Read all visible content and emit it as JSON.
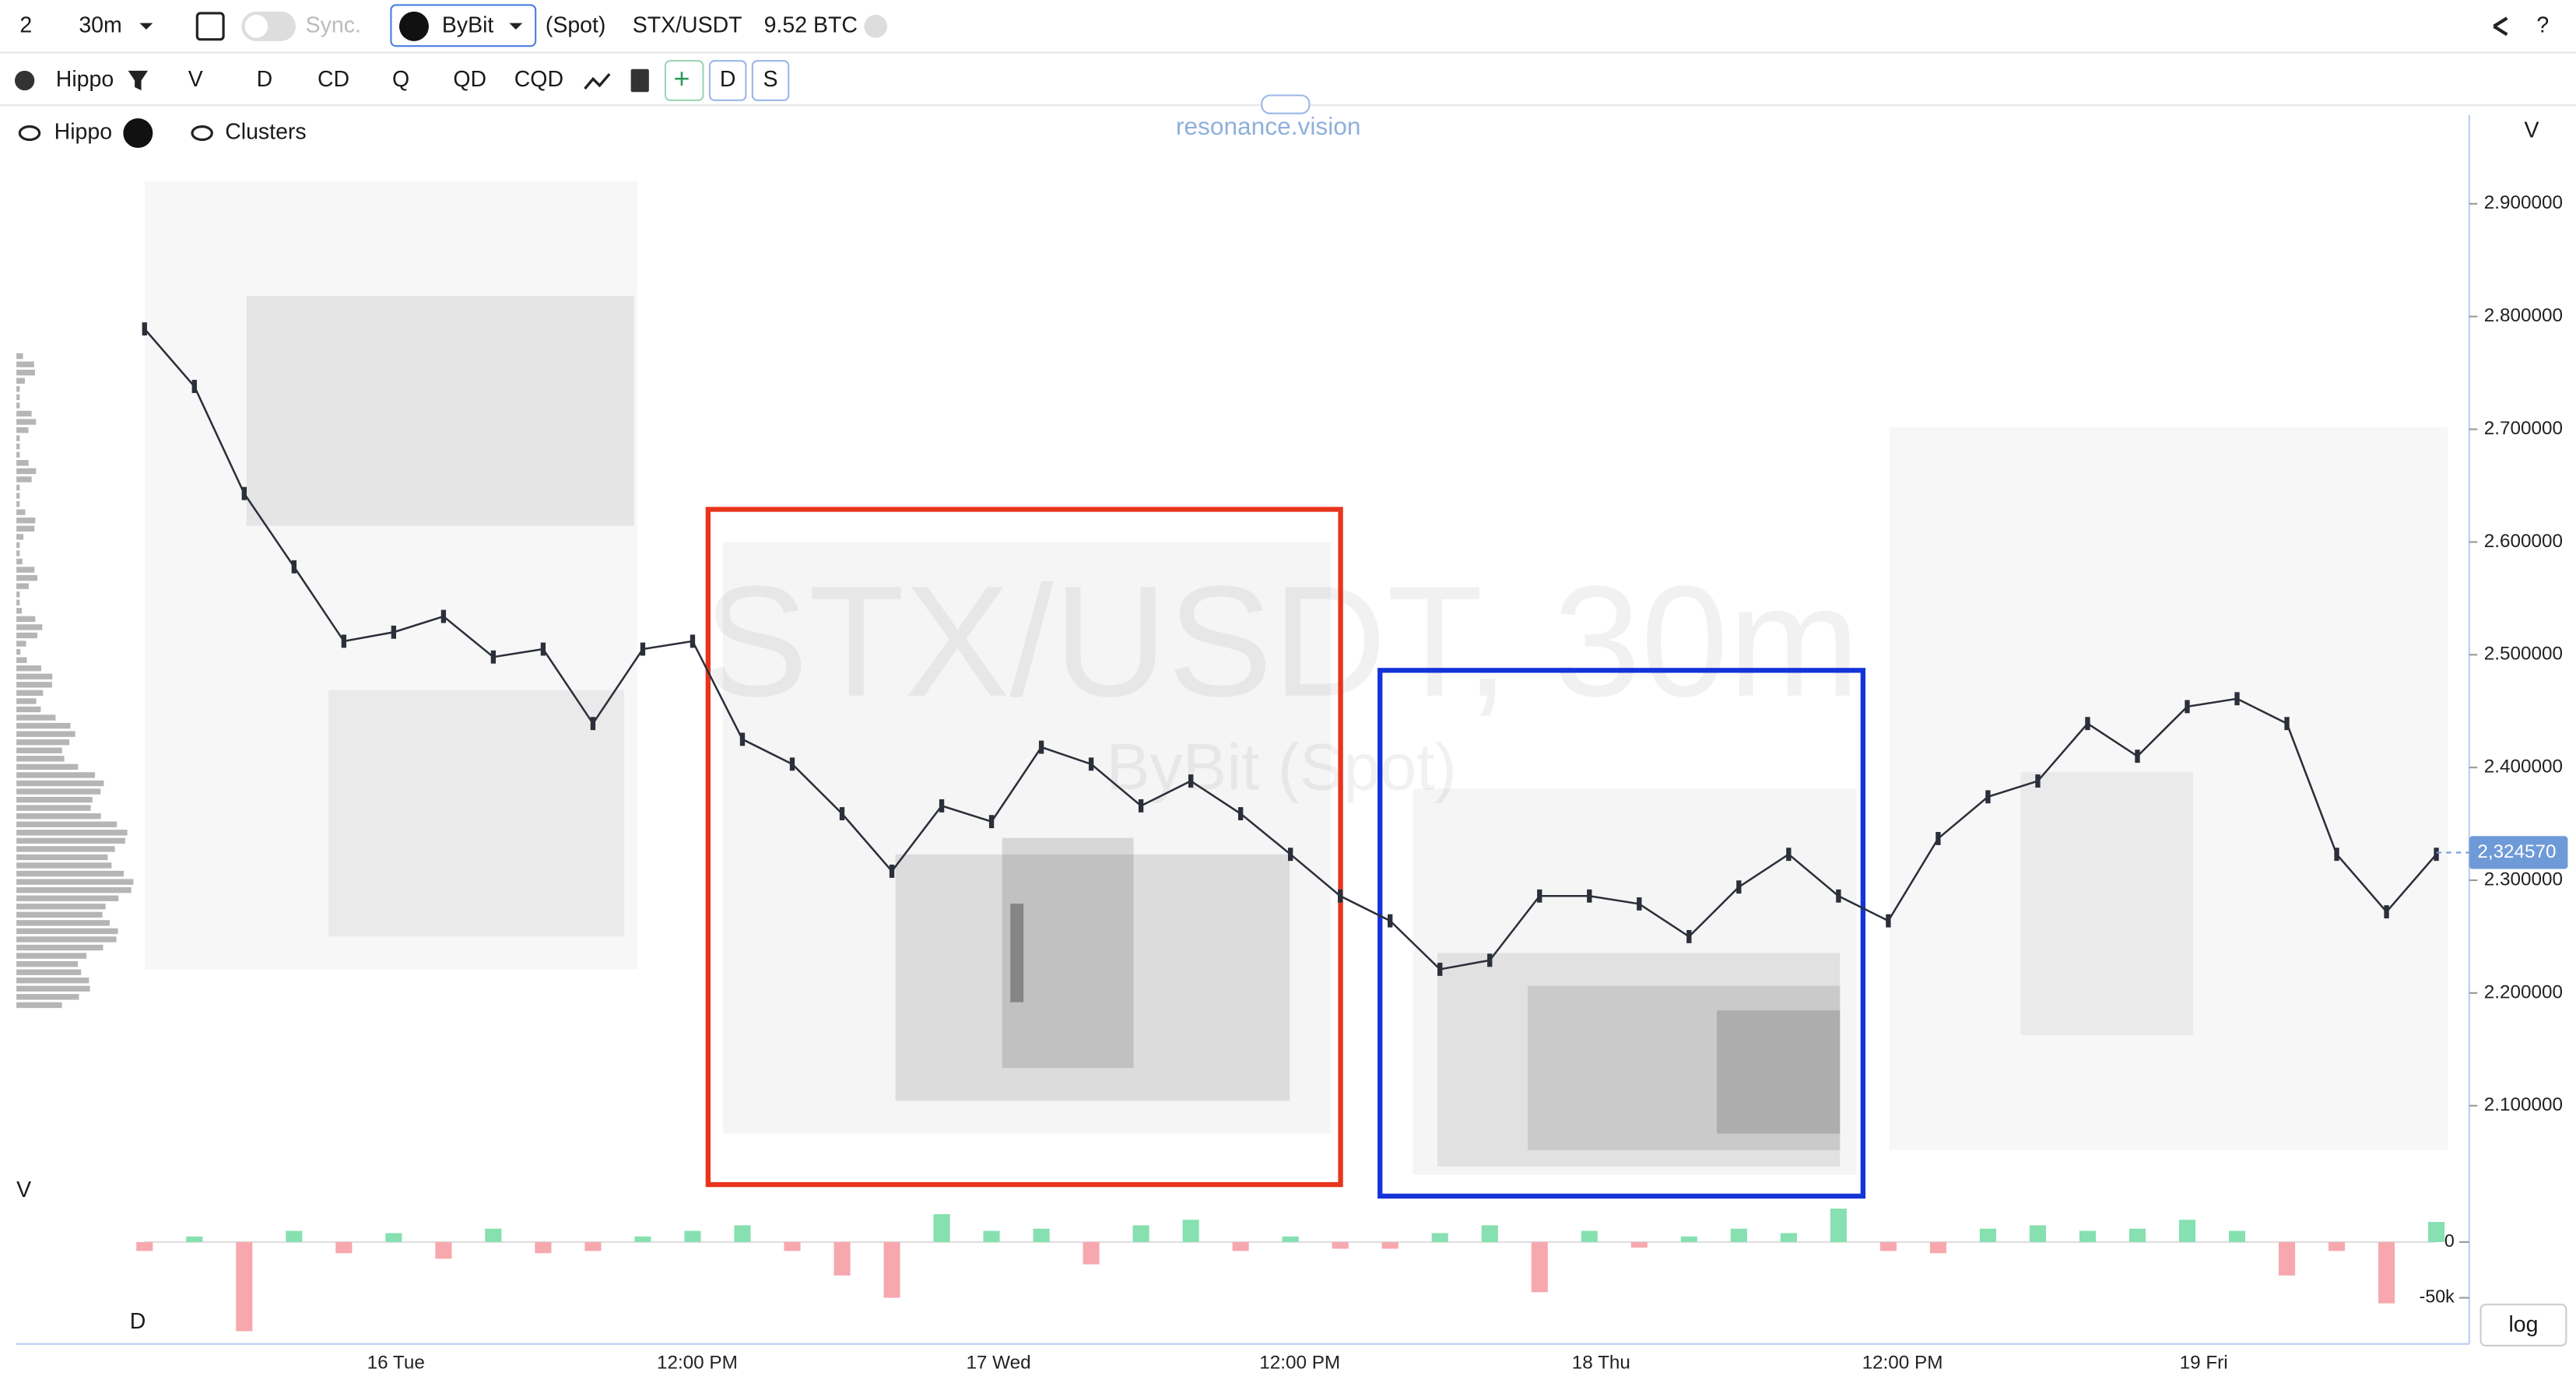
{
  "toolbar": {
    "layout_count": "2",
    "interval": "30m",
    "sync": "Sync.",
    "exchange": "ByBit",
    "market": "(Spot)",
    "symbol": "STX/USDT",
    "volume": "9.52 BTC"
  },
  "toolbar2": {
    "indicator": "Hippo",
    "buttons": [
      "V",
      "D",
      "CD",
      "Q",
      "QD",
      "CQD"
    ],
    "toggles": [
      "D",
      "S"
    ]
  },
  "legend": {
    "hippo": "Hippo",
    "clusters": "Clusters"
  },
  "watermark": {
    "brand": "resonance.vision",
    "symbol": "STX/USDT, 30m",
    "exchange": "ByBit (Spot)"
  },
  "chart_data": {
    "type": "line",
    "color": "#2b2f3a",
    "axis_label": "V",
    "values": [
      2.789,
      2.738,
      2.643,
      2.578,
      2.512,
      2.52,
      2.534,
      2.498,
      2.505,
      2.439,
      2.505,
      2.512,
      2.425,
      2.403,
      2.359,
      2.308,
      2.366,
      2.352,
      2.418,
      2.403,
      2.366,
      2.388,
      2.359,
      2.323,
      2.286,
      2.264,
      2.221,
      2.229,
      2.286,
      2.286,
      2.279,
      2.25,
      2.294,
      2.323,
      2.286,
      2.264,
      2.337,
      2.374,
      2.388,
      2.439,
      2.41,
      2.454,
      2.461,
      2.439,
      2.323,
      2.272,
      2.323
    ],
    "ylim": [
      2.0315,
      2.9787
    ],
    "yticks": [
      {
        "value": 2.9,
        "label": "2.900000"
      },
      {
        "value": 2.8,
        "label": "2.800000"
      },
      {
        "value": 2.7,
        "label": "2.700000"
      },
      {
        "value": 2.6,
        "label": "2.600000"
      },
      {
        "value": 2.5,
        "label": "2.500000"
      },
      {
        "value": 2.4,
        "label": "2.400000"
      },
      {
        "value": 2.3,
        "label": "2.300000"
      },
      {
        "value": 2.2,
        "label": "2.200000"
      },
      {
        "value": 2.1,
        "label": "2.100000"
      }
    ],
    "current_price": {
      "value": 2.32457,
      "label": "2,324570"
    },
    "x_labels": [
      "16 Tue",
      "12:00 PM",
      "17 Wed",
      "12:00 PM",
      "18 Thu",
      "12:00 PM",
      "19 Fri"
    ],
    "volume_label": "V",
    "scale_button": "log",
    "delta": {
      "label": "D",
      "positive_color": "#86e0b0",
      "negative_color": "#f7a8ae",
      "ylim": [
        -87000,
        53000
      ],
      "yticks": [
        {
          "value": 0,
          "label": "0"
        },
        {
          "value": -50000,
          "label": "-50k"
        }
      ],
      "values": [
        -8000,
        5000,
        -80000,
        10000,
        -10000,
        8000,
        -15000,
        12000,
        -10000,
        -8000,
        5000,
        10000,
        15000,
        -8000,
        -30000,
        -50000,
        25000,
        10000,
        12000,
        -20000,
        15000,
        20000,
        -8000,
        5000,
        -6000,
        -6000,
        8000,
        15000,
        -45000,
        10000,
        -5000,
        5000,
        12000,
        8000,
        30000,
        -8000,
        -10000,
        12000,
        15000,
        10000,
        12000,
        20000,
        10000,
        -30000,
        -8000,
        -55000,
        18000
      ]
    }
  }
}
